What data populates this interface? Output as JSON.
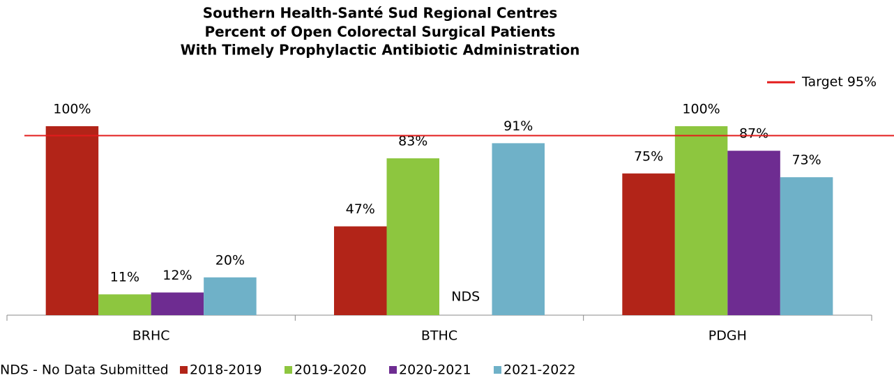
{
  "chart_data": {
    "type": "bar",
    "title": [
      "Southern Health-Santé Sud Regional Centres",
      "Percent of Open Colorectal Surgical Patients",
      "With Timely Prophylactic Antibiotic Administration"
    ],
    "categories": [
      "BRHC",
      "BTHC",
      "PDGH"
    ],
    "series": [
      {
        "name": "2018-2019",
        "color": "#b22418",
        "values": [
          100,
          47,
          75
        ],
        "value_labels": [
          "100%",
          "47%",
          "75%"
        ]
      },
      {
        "name": "2019-2020",
        "color": "#8dc63f",
        "values": [
          11,
          83,
          100
        ],
        "value_labels": [
          "11%",
          "83%",
          "100%"
        ]
      },
      {
        "name": "2020-2021",
        "color": "#6e2c91",
        "values": [
          12,
          null,
          87
        ],
        "value_labels": [
          "12%",
          "NDS",
          "87%"
        ]
      },
      {
        "name": "2021-2022",
        "color": "#6fb1c8",
        "values": [
          20,
          91,
          73
        ],
        "value_labels": [
          "20%",
          "91%",
          "73%"
        ]
      }
    ],
    "target": {
      "label": "Target 95%",
      "value": 95,
      "color": "#e31b1b"
    },
    "note": "NDS - No Data Submitted",
    "ylim": [
      0,
      100
    ]
  }
}
